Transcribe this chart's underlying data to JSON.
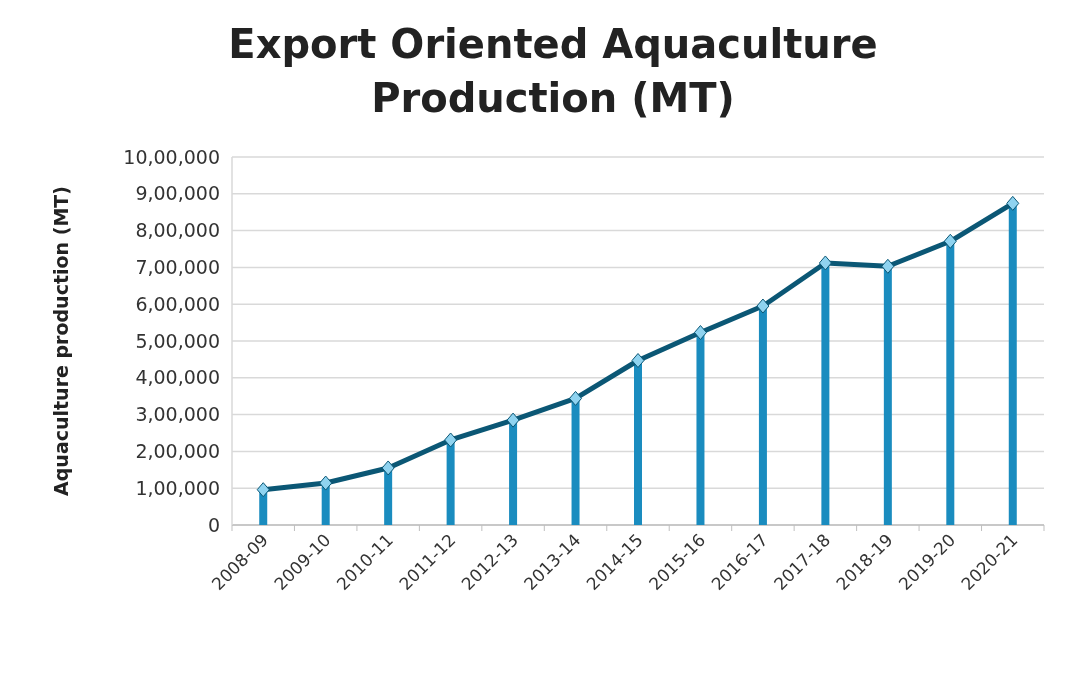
{
  "chart_data": {
    "type": "bar",
    "title": "Export Oriented Aquaculture Production (MT)",
    "ylabel": "Aquaculture production (MT)",
    "categories": [
      "2008-09",
      "2009-10",
      "2010-11",
      "2011-12",
      "2012-13",
      "2013-14",
      "2014-15",
      "2015-16",
      "2016-17",
      "2017-18",
      "2018-19",
      "2019-20",
      "2020-21"
    ],
    "series": [
      {
        "color": "#1a8cbf",
        "values": [
          96000,
          114000,
          155000,
          231000,
          285000,
          344000,
          447000,
          523000,
          595000,
          712000,
          703000,
          771000,
          874000
        ]
      },
      {
        "type": "line",
        "color": "#0b5775",
        "marker": "diamond",
        "values": [
          96000,
          114000,
          155000,
          231000,
          285000,
          344000,
          447000,
          523000,
          595000,
          712000,
          703000,
          771000,
          874000
        ]
      }
    ],
    "ylim": [
      0,
      1000000
    ],
    "yticks": [
      0,
      {
        "value": 100000,
        "label": "1,00,000"
      },
      {
        "value": 200000,
        "label": "2,00,000"
      },
      {
        "value": 300000,
        "label": "3,00,000"
      },
      {
        "value": 400000,
        "label": "4,00,000"
      },
      {
        "value": 500000,
        "label": "5,00,000"
      },
      {
        "value": 600000,
        "label": "6,00,000"
      },
      {
        "value": 700000,
        "label": "7,00,000"
      },
      {
        "value": 800000,
        "label": "8,00,000"
      },
      {
        "value": 900000,
        "label": "9,00,000"
      },
      {
        "value": 1000000,
        "label": "10,00,000"
      }
    ],
    "grid": "y"
  }
}
